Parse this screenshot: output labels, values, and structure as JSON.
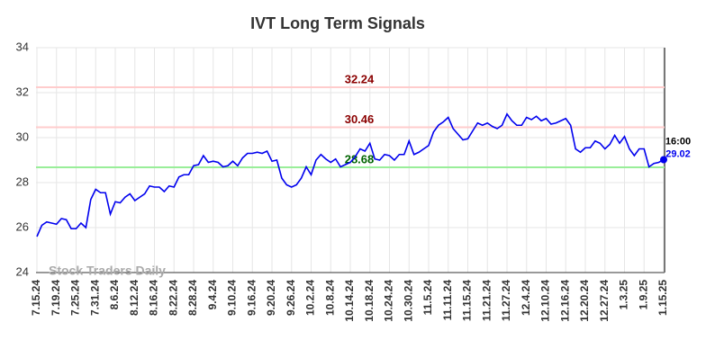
{
  "chart_data": {
    "type": "line",
    "title": "IVT Long Term Signals",
    "watermark": "Stock Traders Daily",
    "categories": [
      "7.15.24",
      null,
      null,
      null,
      "7.19.24",
      null,
      null,
      null,
      "7.25.24",
      null,
      null,
      null,
      "7.31.24",
      null,
      null,
      null,
      "8.6.24",
      null,
      null,
      null,
      "8.12.24",
      null,
      null,
      null,
      "8.16.24",
      null,
      null,
      null,
      "8.22.24",
      null,
      null,
      null,
      "8.28.24",
      null,
      null,
      null,
      "9.4.24",
      null,
      null,
      null,
      "9.10.24",
      null,
      null,
      null,
      "9.16.24",
      null,
      null,
      null,
      "9.20.24",
      null,
      null,
      null,
      "9.26.24",
      null,
      null,
      null,
      "10.2.24",
      null,
      null,
      null,
      "10.8.24",
      null,
      null,
      null,
      "10.14.24",
      null,
      null,
      null,
      "10.18.24",
      null,
      null,
      null,
      "10.24.24",
      null,
      null,
      null,
      "10.30.24",
      null,
      null,
      null,
      "11.5.24",
      null,
      null,
      null,
      "11.11.24",
      null,
      null,
      null,
      "11.15.24",
      null,
      null,
      null,
      "11.21.24",
      null,
      null,
      null,
      "11.27.24",
      null,
      null,
      null,
      "12.4.24",
      null,
      null,
      null,
      "12.10.24",
      null,
      null,
      null,
      "12.16.24",
      null,
      null,
      null,
      "12.20.24",
      null,
      null,
      null,
      "12.27.24",
      null,
      null,
      null,
      "1.3.25",
      null,
      null,
      null,
      "1.9.25",
      null,
      null,
      null,
      "1.15.25"
    ],
    "values": [
      25.6,
      26.1,
      26.25,
      26.2,
      26.15,
      26.4,
      26.35,
      25.95,
      25.95,
      26.2,
      26.0,
      27.25,
      27.7,
      27.55,
      27.55,
      26.6,
      27.15,
      27.1,
      27.35,
      27.5,
      27.2,
      27.35,
      27.5,
      27.85,
      27.8,
      27.8,
      27.6,
      27.85,
      27.8,
      28.25,
      28.35,
      28.35,
      28.75,
      28.8,
      29.2,
      28.9,
      28.95,
      28.9,
      28.7,
      28.75,
      28.95,
      28.75,
      29.1,
      29.3,
      29.3,
      29.35,
      29.3,
      29.4,
      28.95,
      29.0,
      28.2,
      27.9,
      27.8,
      27.9,
      28.2,
      28.7,
      28.35,
      29.0,
      29.25,
      29.05,
      28.9,
      29.05,
      28.7,
      28.8,
      28.9,
      29.15,
      29.5,
      29.4,
      29.75,
      29.05,
      29.0,
      29.25,
      29.2,
      29.0,
      29.25,
      29.25,
      29.85,
      29.25,
      29.35,
      29.5,
      29.65,
      30.25,
      30.55,
      30.7,
      30.9,
      30.4,
      30.15,
      29.9,
      29.95,
      30.3,
      30.65,
      30.55,
      30.65,
      30.5,
      30.4,
      30.55,
      31.05,
      30.75,
      30.55,
      30.55,
      30.9,
      30.8,
      30.95,
      30.75,
      30.85,
      30.6,
      30.65,
      30.75,
      30.85,
      30.55,
      29.5,
      29.35,
      29.55,
      29.55,
      29.85,
      29.75,
      29.5,
      29.7,
      30.1,
      29.75,
      30.05,
      29.5,
      29.2,
      29.5,
      29.5,
      28.7,
      28.85,
      28.9,
      29.02
    ],
    "color": "#0000ee",
    "last_time_label": "16:00",
    "hlines": [
      {
        "value": 32.24,
        "color": "#ffcccc",
        "label_color": "#8b0000"
      },
      {
        "value": 30.46,
        "color": "#ffcccc",
        "label_color": "#8b0000"
      },
      {
        "value": 28.68,
        "color": "#99ee99",
        "label_color": "#006400"
      }
    ],
    "ylim": [
      24,
      34
    ],
    "yticks": [
      24,
      26,
      28,
      30,
      32,
      34
    ],
    "grid": true
  }
}
